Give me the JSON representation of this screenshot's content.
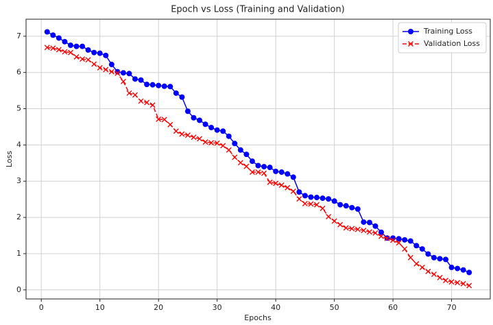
{
  "chart_data": {
    "type": "line",
    "title": "Epoch vs Loss (Training and Validation)",
    "xlabel": "Epochs",
    "ylabel": "Loss",
    "x": [
      1,
      2,
      3,
      4,
      5,
      6,
      7,
      8,
      9,
      10,
      11,
      12,
      13,
      14,
      15,
      16,
      17,
      18,
      19,
      20,
      21,
      22,
      23,
      24,
      25,
      26,
      27,
      28,
      29,
      30,
      31,
      32,
      33,
      34,
      35,
      36,
      37,
      38,
      39,
      40,
      41,
      42,
      43,
      44,
      45,
      46,
      47,
      48,
      49,
      50,
      51,
      52,
      53,
      54,
      55,
      56,
      57,
      58,
      59,
      60,
      61,
      62,
      63,
      64,
      65,
      66,
      67,
      68,
      69,
      70,
      71,
      72,
      73
    ],
    "series": [
      {
        "name": "Training Loss",
        "color": "#0000ff",
        "marker": "circle",
        "linestyle": "solid",
        "values": [
          7.12,
          7.03,
          6.95,
          6.85,
          6.75,
          6.72,
          6.72,
          6.62,
          6.55,
          6.53,
          6.47,
          6.22,
          6.02,
          5.99,
          5.97,
          5.82,
          5.79,
          5.67,
          5.66,
          5.64,
          5.62,
          5.61,
          5.43,
          5.32,
          4.93,
          4.75,
          4.68,
          4.57,
          4.48,
          4.41,
          4.38,
          4.24,
          4.04,
          3.86,
          3.74,
          3.55,
          3.43,
          3.4,
          3.38,
          3.27,
          3.25,
          3.2,
          3.11,
          2.7,
          2.6,
          2.56,
          2.55,
          2.53,
          2.51,
          2.45,
          2.35,
          2.32,
          2.27,
          2.23,
          1.87,
          1.86,
          1.76,
          1.59,
          1.43,
          1.43,
          1.41,
          1.38,
          1.35,
          1.22,
          1.13,
          0.99,
          0.89,
          0.86,
          0.84,
          0.62,
          0.59,
          0.55,
          0.48
        ]
      },
      {
        "name": "Validation Loss",
        "color": "#ff0000",
        "marker": "x",
        "linestyle": "dashed",
        "values": [
          6.69,
          6.67,
          6.63,
          6.57,
          6.55,
          6.43,
          6.37,
          6.35,
          6.23,
          6.13,
          6.08,
          6.02,
          5.98,
          5.75,
          5.43,
          5.38,
          5.21,
          5.17,
          5.1,
          4.71,
          4.7,
          4.56,
          4.38,
          4.3,
          4.27,
          4.21,
          4.17,
          4.08,
          4.06,
          4.05,
          3.98,
          3.86,
          3.66,
          3.51,
          3.41,
          3.25,
          3.25,
          3.22,
          2.97,
          2.94,
          2.89,
          2.82,
          2.72,
          2.51,
          2.38,
          2.37,
          2.35,
          2.25,
          2.02,
          1.9,
          1.8,
          1.71,
          1.69,
          1.67,
          1.64,
          1.6,
          1.57,
          1.48,
          1.42,
          1.37,
          1.3,
          1.13,
          0.89,
          0.72,
          0.62,
          0.51,
          0.43,
          0.34,
          0.26,
          0.22,
          0.2,
          0.17,
          0.12
        ]
      }
    ],
    "xlim": [
      -2.6,
      76.6
    ],
    "xticks": [
      0,
      10,
      20,
      30,
      40,
      50,
      60,
      70
    ],
    "ylim": [
      -0.25,
      7.47
    ],
    "yticks": [
      0,
      1,
      2,
      3,
      4,
      5,
      6,
      7
    ],
    "grid": true,
    "legend": "upper right"
  }
}
